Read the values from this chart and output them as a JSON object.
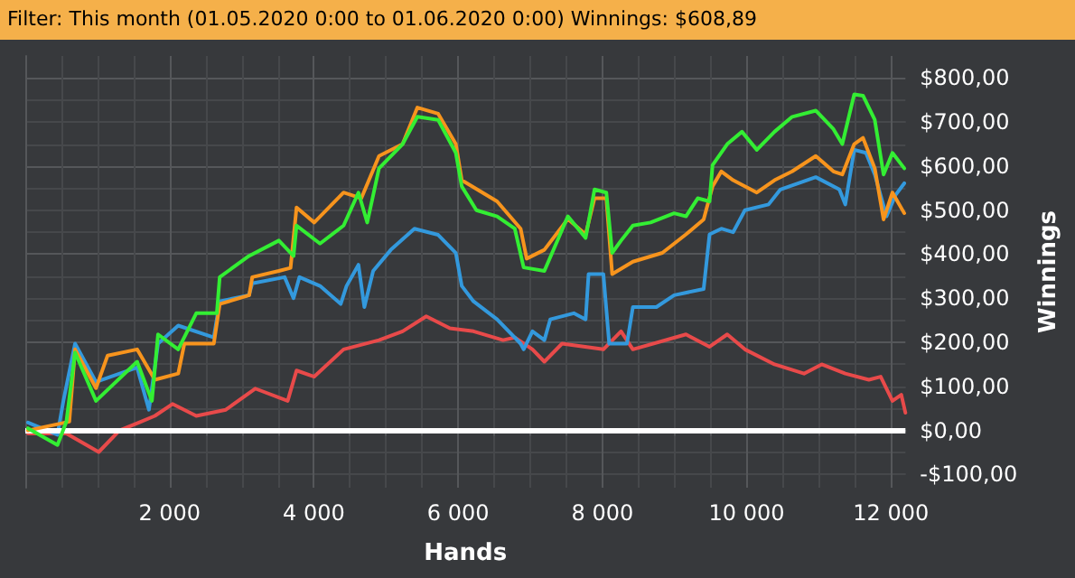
{
  "chart_data": {
    "type": "line",
    "title": "Filter: This month (01.05.2020 0:00 to 01.06.2020 0:00) Winnings: $608,89",
    "xlabel": "Hands",
    "ylabel": "Winnings",
    "xlim": [
      0,
      12200
    ],
    "ylim": [
      -130,
      850
    ],
    "xticks": [
      {
        "value": 2000,
        "label": "2 000"
      },
      {
        "value": 4000,
        "label": "4 000"
      },
      {
        "value": 6000,
        "label": "6 000"
      },
      {
        "value": 8000,
        "label": "8 000"
      },
      {
        "value": 10000,
        "label": "10 000"
      },
      {
        "value": 12000,
        "label": "12 000"
      }
    ],
    "yticks": [
      {
        "value": -100,
        "label": "-$100,00"
      },
      {
        "value": 0,
        "label": "$0,00"
      },
      {
        "value": 100,
        "label": "$100,00"
      },
      {
        "value": 200,
        "label": "$200,00"
      },
      {
        "value": 300,
        "label": "$300,00"
      },
      {
        "value": 400,
        "label": "$400,00"
      },
      {
        "value": 500,
        "label": "$500,00"
      },
      {
        "value": 600,
        "label": "$600,00"
      },
      {
        "value": 700,
        "label": "$700,00"
      },
      {
        "value": 800,
        "label": "$800,00"
      }
    ],
    "grid": true,
    "marker": "none",
    "line_style": "solid",
    "ref_lines": [
      {
        "axis": "y",
        "value": 0,
        "label": null,
        "color": "#ffffff"
      }
    ],
    "series": [
      {
        "color": "#e84a4a",
        "x": [
          37,
          570,
          1018,
          1305,
          1590,
          1796,
          2040,
          2370,
          2780,
          3187,
          3637,
          3760,
          4005,
          4412,
          4903,
          5230,
          5558,
          5886,
          6213,
          6622,
          6785,
          7030,
          7195,
          7440,
          8013,
          8258,
          8422,
          9158,
          9485,
          9730,
          9975,
          10385,
          10794,
          11039,
          11366,
          11693,
          11857,
          12020,
          12143,
          12200
        ],
        "values": [
          -7,
          -7,
          -49,
          0,
          19,
          33,
          60,
          33,
          47,
          95,
          67,
          136,
          122,
          184,
          205,
          225,
          259,
          232,
          225,
          205,
          211,
          184,
          156,
          197,
          184,
          225,
          184,
          218,
          190,
          218,
          184,
          150,
          129,
          150,
          129,
          115,
          122,
          67,
          81,
          40
        ]
      },
      {
        "color": "#3399dd",
        "x": [
          37,
          446,
          528,
          690,
          980,
          1550,
          1714,
          1840,
          2120,
          2613,
          2695,
          3100,
          3146,
          3595,
          3718,
          3800,
          4085,
          4372,
          4453,
          4618,
          4700,
          4822,
          5067,
          5394,
          5723,
          5968,
          6050,
          6213,
          6540,
          6866,
          6908,
          7030,
          7195,
          7276,
          7603,
          7767,
          7808,
          8013,
          8094,
          8340,
          8422,
          8748,
          8994,
          9403,
          9485,
          9648,
          9812,
          9975,
          10303,
          10467,
          10957,
          11284,
          11366,
          11490,
          11653,
          11775,
          11938,
          12061,
          12184
        ],
        "values": [
          18,
          -10,
          67,
          197,
          110,
          143,
          47,
          197,
          238,
          211,
          293,
          307,
          334,
          348,
          300,
          348,
          328,
          287,
          328,
          376,
          280,
          362,
          410,
          458,
          444,
          403,
          328,
          293,
          252,
          197,
          184,
          225,
          205,
          252,
          266,
          252,
          355,
          355,
          197,
          197,
          280,
          280,
          307,
          321,
          445,
          458,
          450,
          500,
          513,
          547,
          575,
          547,
          513,
          637,
          630,
          581,
          486,
          534,
          561
        ]
      },
      {
        "color": "#f7941d",
        "x": [
          37,
          610,
          690,
          980,
          1141,
          1550,
          1796,
          2120,
          2205,
          2613,
          2695,
          3104,
          3146,
          3515,
          3677,
          3760,
          4005,
          4412,
          4658,
          4903,
          5230,
          5435,
          5723,
          5968,
          6050,
          6540,
          6866,
          6950,
          7195,
          7521,
          7767,
          7890,
          8054,
          8135,
          8422,
          8830,
          9158,
          9403,
          9526,
          9648,
          9812,
          10140,
          10385,
          10630,
          10957,
          11202,
          11325,
          11490,
          11612,
          11775,
          11897,
          12020,
          12184
        ],
        "values": [
          0,
          20,
          184,
          96,
          170,
          184,
          115,
          129,
          197,
          197,
          287,
          307,
          348,
          362,
          369,
          506,
          472,
          540,
          527,
          623,
          650,
          733,
          719,
          650,
          568,
          520,
          458,
          390,
          410,
          480,
          445,
          527,
          527,
          355,
          383,
          403,
          445,
          479,
          554,
          588,
          568,
          540,
          568,
          588,
          623,
          588,
          581,
          650,
          664,
          595,
          479,
          540,
          493
        ]
      },
      {
        "color": "#33ee33",
        "x": [
          37,
          446,
          570,
          690,
          980,
          1550,
          1755,
          1840,
          2120,
          2370,
          2655,
          2695,
          3100,
          3515,
          3718,
          3760,
          4085,
          4412,
          4618,
          4740,
          4903,
          5230,
          5435,
          5723,
          5968,
          6050,
          6253,
          6540,
          6785,
          6908,
          7195,
          7521,
          7767,
          7890,
          8054,
          8135,
          8258,
          8422,
          8667,
          8994,
          9158,
          9321,
          9485,
          9526,
          9730,
          9934,
          10140,
          10385,
          10630,
          10957,
          11202,
          11325,
          11490,
          11612,
          11775,
          11897,
          12020,
          12184
        ],
        "values": [
          5,
          -33,
          20,
          177,
          67,
          156,
          67,
          218,
          184,
          266,
          266,
          348,
          396,
          431,
          396,
          465,
          424,
          465,
          540,
          472,
          595,
          650,
          712,
          705,
          630,
          554,
          500,
          486,
          458,
          370,
          362,
          486,
          437,
          547,
          540,
          403,
          431,
          465,
          472,
          493,
          486,
          527,
          520,
          602,
          650,
          678,
          637,
          678,
          712,
          726,
          684,
          650,
          763,
          760,
          705,
          581,
          630,
          595
        ]
      }
    ]
  }
}
